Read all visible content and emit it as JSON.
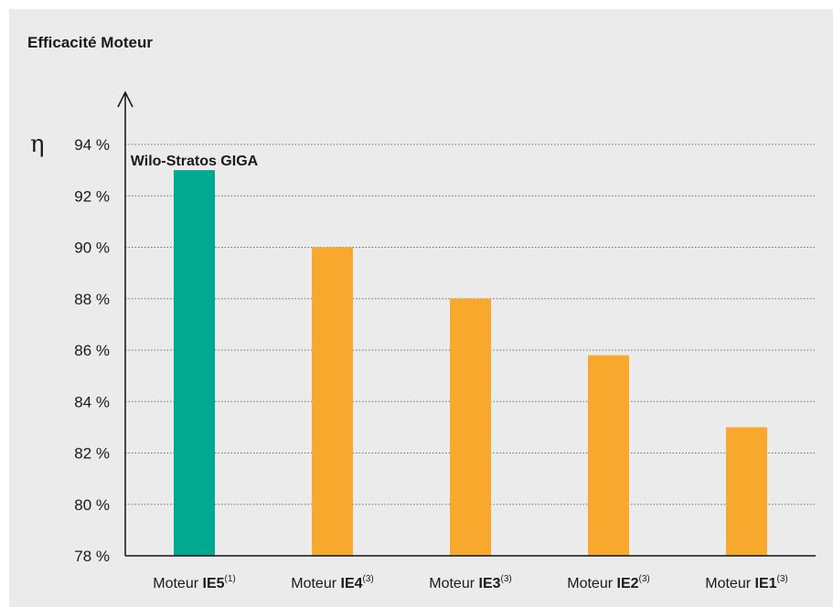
{
  "colors": {
    "background": "#ebebeb",
    "highlight": "#00a98f",
    "standard": "#f8a92d",
    "grid": "#6f6f6f",
    "text": "#1a1a1a"
  },
  "chart_data": {
    "type": "bar",
    "title": "Efficacité Moteur",
    "ylabel": "η",
    "ylim": [
      78,
      94
    ],
    "yticks": [
      78,
      80,
      82,
      84,
      86,
      88,
      90,
      92,
      94
    ],
    "ytick_labels": [
      "78 %",
      "80 %",
      "82 %",
      "84 %",
      "86 %",
      "88 %",
      "90 %",
      "92 %",
      "94 %"
    ],
    "grid": true,
    "categories": [
      {
        "prefix": "Moteur ",
        "bold": "IE5",
        "note": "(1)"
      },
      {
        "prefix": "Moteur ",
        "bold": "IE4",
        "note": "(3)"
      },
      {
        "prefix": "Moteur ",
        "bold": "IE3",
        "note": "(3)"
      },
      {
        "prefix": "Moteur ",
        "bold": "IE2",
        "note": "(3)"
      },
      {
        "prefix": "Moteur ",
        "bold": "IE1",
        "note": "(3)"
      }
    ],
    "values": [
      93,
      90,
      88,
      85.8,
      83
    ],
    "highlight_index": 0,
    "annotations": [
      {
        "text": "Wilo-Stratos GIGA",
        "index": 0
      }
    ]
  }
}
